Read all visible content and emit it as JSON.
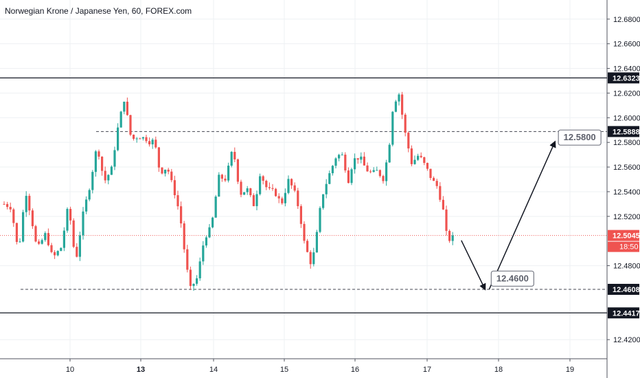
{
  "chart_data": {
    "type": "candlestick",
    "title": "Norwegian Krone / Japanese Yen, 60, FOREX.com",
    "x_ticks": [
      "10",
      "13",
      "14",
      "15",
      "16",
      "17",
      "18",
      "19"
    ],
    "y_ticks": [
      "12.6800",
      "12.6600",
      "12.6400",
      "12.6200",
      "12.6000",
      "12.5800",
      "12.5600",
      "12.5400",
      "12.5200",
      "12.4800",
      "12.4200"
    ],
    "ylim": [
      12.4045,
      12.6955
    ],
    "levels": {
      "resistance": {
        "value": 12.6323,
        "label": "12.6323"
      },
      "support": {
        "value": 12.4417,
        "label": "12.4417"
      },
      "upper_dashed": {
        "value": 12.5888,
        "label": "12.5888"
      },
      "lower_dashed": {
        "value": 12.4608,
        "label": "12.4608"
      },
      "current_price": {
        "value": 12.5045,
        "label": "12.5045",
        "countdown": "18:50"
      }
    },
    "targets": [
      {
        "label": "12.4600",
        "value": 12.46
      },
      {
        "label": "12.5800",
        "value": 12.58
      }
    ],
    "projection": [
      {
        "day": 17.45,
        "price": 12.5005
      },
      {
        "day": 17.84,
        "price": 12.4608
      },
      {
        "day": 18.79,
        "price": 12.5805
      }
    ],
    "colors": {
      "up": "#26a69a",
      "down": "#ef5350",
      "grid": "#eef0f3",
      "level": "#131722",
      "price_line": "#ef5350"
    },
    "candle_anchors": [
      [
        9.12,
        12.53
      ],
      [
        9.22,
        12.527
      ],
      [
        9.32,
        12.49
      ],
      [
        9.42,
        12.541
      ],
      [
        9.5,
        12.519
      ],
      [
        9.58,
        12.493
      ],
      [
        9.7,
        12.506
      ],
      [
        9.8,
        12.486
      ],
      [
        9.92,
        12.495
      ],
      [
        10.02,
        12.53
      ],
      [
        10.12,
        12.482
      ],
      [
        10.22,
        12.521
      ],
      [
        10.32,
        12.545
      ],
      [
        10.42,
        12.578
      ],
      [
        10.52,
        12.548
      ],
      [
        10.62,
        12.558
      ],
      [
        10.72,
        12.595
      ],
      [
        10.8,
        12.615
      ],
      [
        10.9,
        12.582
      ],
      [
        11.0,
        12.585
      ],
      [
        11.1,
        12.583
      ],
      [
        11.16,
        12.58
      ],
      [
        11.22,
        12.582
      ],
      [
        11.3,
        12.555
      ],
      [
        11.4,
        12.56
      ],
      [
        11.5,
        12.54
      ],
      [
        11.58,
        12.521
      ],
      [
        11.65,
        12.488
      ],
      [
        11.72,
        12.461
      ],
      [
        11.82,
        12.47
      ],
      [
        11.92,
        12.502
      ],
      [
        12.02,
        12.512
      ],
      [
        12.12,
        12.552
      ],
      [
        12.22,
        12.55
      ],
      [
        12.32,
        12.576
      ],
      [
        12.42,
        12.538
      ],
      [
        12.52,
        12.542
      ],
      [
        12.62,
        12.528
      ],
      [
        12.7,
        12.555
      ],
      [
        12.8,
        12.542
      ],
      [
        12.9,
        12.54
      ],
      [
        13.0,
        12.53
      ],
      [
        13.1,
        12.55
      ],
      [
        13.2,
        12.537
      ],
      [
        13.26,
        12.52
      ],
      [
        13.32,
        12.498
      ],
      [
        13.42,
        12.48
      ],
      [
        13.48,
        12.5
      ],
      [
        13.56,
        12.535
      ],
      [
        13.66,
        12.553
      ],
      [
        13.76,
        12.568
      ],
      [
        13.84,
        12.571
      ],
      [
        13.94,
        12.548
      ],
      [
        14.0,
        12.566
      ],
      [
        14.1,
        12.568
      ],
      [
        14.18,
        12.558
      ],
      [
        14.26,
        12.555
      ],
      [
        14.34,
        12.557
      ],
      [
        14.42,
        12.55
      ],
      [
        14.5,
        12.574
      ],
      [
        14.56,
        12.61
      ],
      [
        14.64,
        12.62
      ],
      [
        14.72,
        12.59
      ],
      [
        14.82,
        12.563
      ],
      [
        14.92,
        12.57
      ],
      [
        15.02,
        12.56
      ],
      [
        15.1,
        12.55
      ],
      [
        15.18,
        12.544
      ],
      [
        15.26,
        12.525
      ],
      [
        15.32,
        12.5
      ],
      [
        15.42,
        12.504
      ]
    ],
    "projection_days_ref": [
      13.0,
      18.0
    ]
  }
}
